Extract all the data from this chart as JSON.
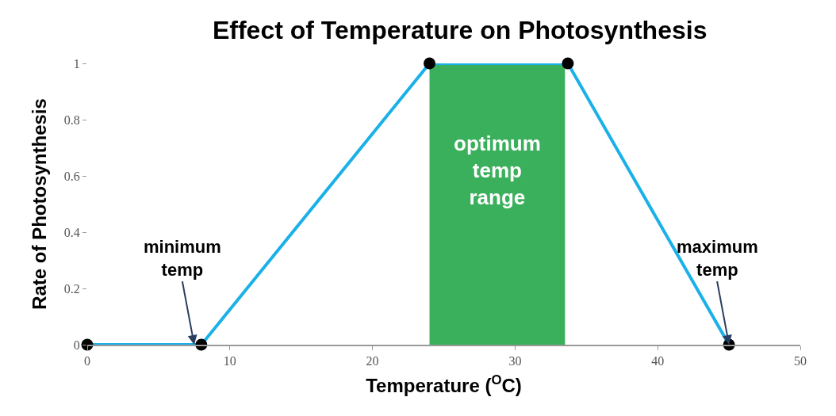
{
  "chart_data": {
    "type": "line",
    "title": "Effect of Temperature on Photosynthesis",
    "xlabel": "Temperature ($^{O}$C)",
    "ylabel": "Rate of Photosynthesis",
    "x": [
      0,
      8,
      24,
      33.7,
      45
    ],
    "series": [
      {
        "color": "#1ab0e8",
        "values": [
          0,
          0,
          1,
          1,
          0
        ]
      }
    ],
    "marker": "circle",
    "line_style": "solid",
    "xlim": [
      0,
      50
    ],
    "xticks": [
      0,
      10,
      20,
      30,
      40,
      50
    ],
    "ylim": [
      0,
      1
    ],
    "yticks": [
      0,
      0.2,
      0.4,
      0.6,
      0.8,
      1
    ],
    "bands": [
      {
        "axis": "x",
        "from": 24,
        "to": 33.5,
        "label": "optimum temp range",
        "color": "#3aaf5c"
      }
    ],
    "annotations": [
      {
        "text": "minimum temp",
        "x": 7.5,
        "y": 0
      },
      {
        "text": "maximum temp",
        "x": 45,
        "y": 0
      }
    ],
    "grid": false
  }
}
